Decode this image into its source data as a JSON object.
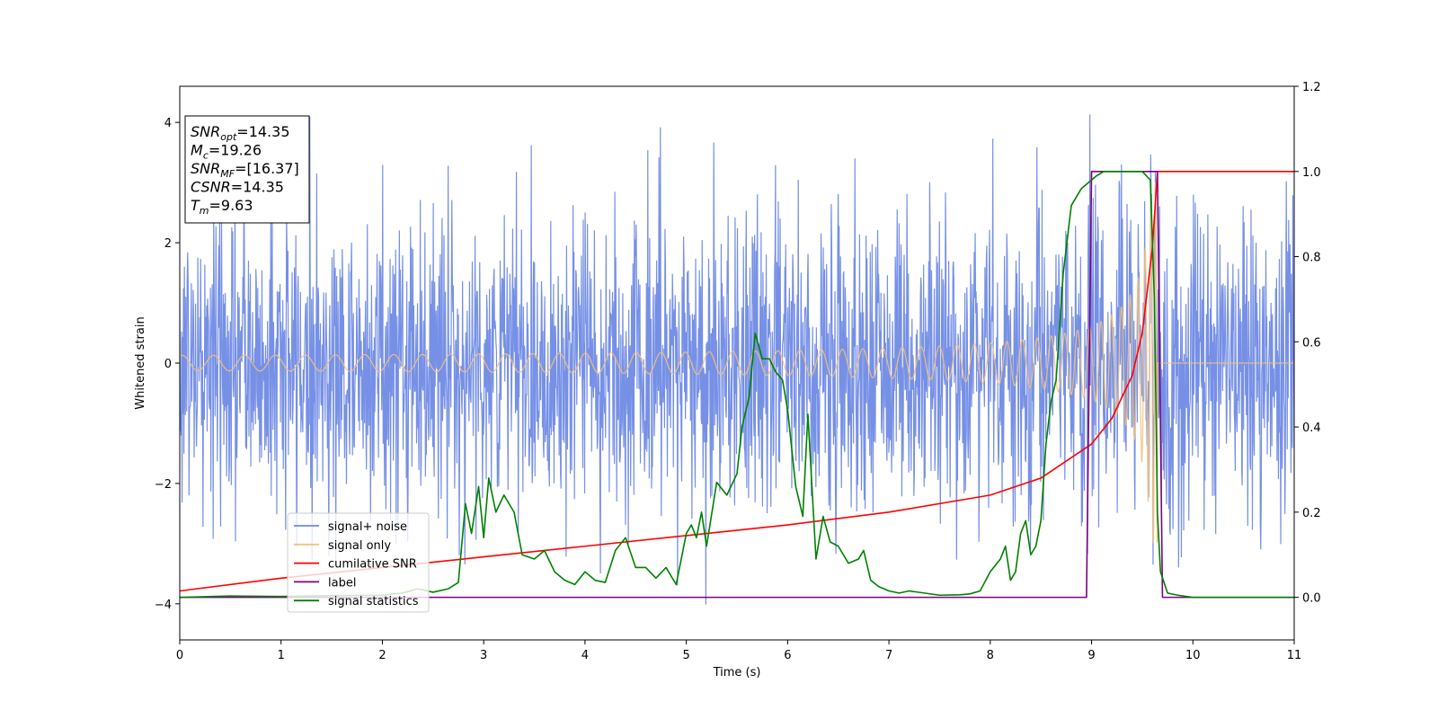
{
  "chart_data": {
    "type": "line",
    "title": "",
    "xlabel": "Time (s)",
    "ylabel": "Whitened strain",
    "xlim": [
      0,
      11
    ],
    "ylim": [
      -4.6,
      4.6
    ],
    "y2lim": [
      -0.1,
      1.2
    ],
    "xticks": [
      "0",
      "1",
      "2",
      "3",
      "4",
      "5",
      "6",
      "7",
      "8",
      "9",
      "10",
      "11"
    ],
    "yticks": [
      "−4",
      "−2",
      "0",
      "2",
      "4"
    ],
    "y2ticks": [
      "0.0",
      "0.2",
      "0.4",
      "0.6",
      "0.8",
      "1.0",
      "1.2"
    ],
    "legend_position": "lower-left",
    "grid": false,
    "annotation": {
      "lines": [
        {
          "sym": "SNR",
          "sub": "opt",
          "value": "=14.35"
        },
        {
          "sym": "M",
          "sub": "c",
          "value": "=19.26"
        },
        {
          "sym": "SNR",
          "sub": "MF",
          "value": "=[16.37]"
        },
        {
          "sym": "CSNR",
          "sub": "",
          "value": "=14.35"
        },
        {
          "sym": "T",
          "sub": "m",
          "value": "=9.63"
        }
      ]
    },
    "series": [
      {
        "name": "signal+ noise",
        "color": "#6f8ae5",
        "axis": "left",
        "kind": "noise",
        "note_amplitude": {
          "typical_range": [
            -3.0,
            3.0
          ],
          "max": 4.18,
          "min": -4.12
        }
      },
      {
        "name": "signal only",
        "color": "#f5c27a",
        "axis": "left",
        "kind": "chirp",
        "merger_time": 9.65,
        "peak_amplitude": 3.0,
        "start_amplitude": 0.05
      },
      {
        "name": "cumilative SNR",
        "color": "#ff0000",
        "axis": "right",
        "x": [
          0,
          1,
          2,
          3,
          4,
          5,
          6,
          7,
          8,
          8.5,
          9,
          9.2,
          9.4,
          9.5,
          9.6,
          9.65,
          11
        ],
        "y": [
          0.015,
          0.045,
          0.07,
          0.095,
          0.12,
          0.145,
          0.17,
          0.2,
          0.24,
          0.28,
          0.36,
          0.42,
          0.52,
          0.62,
          0.82,
          1.0,
          1.0
        ]
      },
      {
        "name": "label",
        "color": "#800080",
        "axis": "right",
        "x": [
          0,
          8.95,
          9.0,
          9.65,
          9.7,
          11
        ],
        "y": [
          0.0,
          0.0,
          1.0,
          1.0,
          0.0,
          0.0
        ]
      },
      {
        "name": "signal statistics",
        "color": "#008000",
        "axis": "right",
        "x": [
          0,
          0.5,
          1.0,
          1.5,
          2.0,
          2.2,
          2.35,
          2.5,
          2.65,
          2.75,
          2.82,
          2.88,
          2.95,
          3.0,
          3.05,
          3.12,
          3.2,
          3.3,
          3.38,
          3.5,
          3.6,
          3.7,
          3.8,
          3.9,
          4.0,
          4.1,
          4.2,
          4.3,
          4.4,
          4.5,
          4.6,
          4.7,
          4.8,
          4.9,
          5.0,
          5.05,
          5.1,
          5.15,
          5.2,
          5.3,
          5.4,
          5.5,
          5.55,
          5.62,
          5.68,
          5.75,
          5.82,
          5.88,
          5.95,
          6.0,
          6.08,
          6.15,
          6.2,
          6.28,
          6.35,
          6.42,
          6.5,
          6.6,
          6.7,
          6.75,
          6.82,
          6.9,
          7.0,
          7.1,
          7.2,
          7.35,
          7.5,
          7.7,
          7.8,
          7.9,
          8.0,
          8.1,
          8.15,
          8.2,
          8.25,
          8.3,
          8.35,
          8.4,
          8.45,
          8.5,
          8.55,
          8.6,
          8.65,
          8.72,
          8.8,
          8.9,
          9.0,
          9.05,
          9.12,
          9.2,
          9.3,
          9.4,
          9.5,
          9.58,
          9.62,
          9.65,
          9.68,
          9.75,
          9.85,
          10.0,
          10.5,
          11.0
        ],
        "y": [
          0.0,
          0.003,
          0.002,
          0.004,
          0.005,
          0.01,
          0.02,
          0.012,
          0.02,
          0.035,
          0.22,
          0.15,
          0.26,
          0.14,
          0.28,
          0.2,
          0.24,
          0.2,
          0.1,
          0.09,
          0.11,
          0.06,
          0.04,
          0.03,
          0.06,
          0.04,
          0.035,
          0.11,
          0.14,
          0.07,
          0.07,
          0.045,
          0.07,
          0.03,
          0.15,
          0.17,
          0.14,
          0.2,
          0.12,
          0.27,
          0.24,
          0.29,
          0.4,
          0.47,
          0.62,
          0.56,
          0.56,
          0.53,
          0.51,
          0.44,
          0.26,
          0.19,
          0.43,
          0.09,
          0.19,
          0.13,
          0.12,
          0.08,
          0.09,
          0.11,
          0.04,
          0.025,
          0.015,
          0.01,
          0.015,
          0.01,
          0.005,
          0.006,
          0.008,
          0.015,
          0.06,
          0.09,
          0.12,
          0.04,
          0.06,
          0.15,
          0.18,
          0.1,
          0.12,
          0.18,
          0.36,
          0.46,
          0.51,
          0.76,
          0.92,
          0.96,
          0.98,
          0.99,
          1.0,
          1.0,
          1.0,
          1.0,
          1.0,
          0.98,
          0.7,
          0.2,
          0.06,
          0.01,
          0.005,
          0.0,
          0.0,
          0.0
        ]
      }
    ]
  }
}
